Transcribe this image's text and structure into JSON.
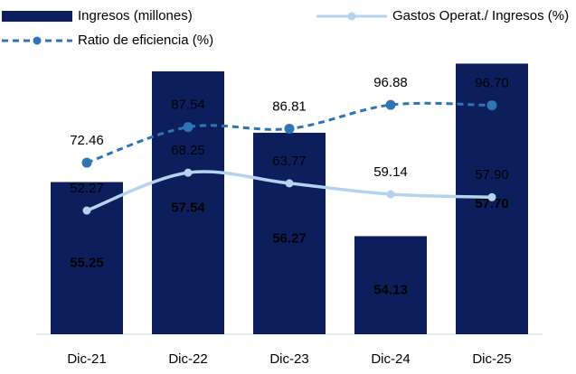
{
  "chart_data": {
    "type": "bar_line",
    "categories": [
      "Dic-21",
      "Dic-22",
      "Dic-23",
      "Dic-24",
      "Dic-25"
    ],
    "ylim": [
      52.1,
      58.4
    ],
    "y2lim": [
      0,
      128.6
    ],
    "series": [
      {
        "name": "Ingresos (millones)",
        "type": "bar",
        "color": "#0c1f5c",
        "values": [
          55.25,
          57.54,
          56.27,
          54.13,
          57.7
        ],
        "value_labels": [
          "55.25",
          "57.54",
          "56.27",
          "54.13",
          "57.70"
        ]
      },
      {
        "name": "Gastos Operat./ Ingresos (%)",
        "type": "line",
        "axis": "y2",
        "color": "#b4d3ef",
        "values": [
          52.27,
          68.25,
          63.77,
          59.14,
          57.9
        ],
        "value_labels": [
          "52.27",
          "68.25",
          "63.77",
          "59.14",
          "57.90"
        ]
      },
      {
        "name": "Ratio de eficiencia (%)",
        "type": "line",
        "axis": "y2",
        "dashed": true,
        "color": "#2e75b6",
        "values": [
          72.46,
          87.54,
          86.81,
          96.88,
          96.7
        ],
        "value_labels": [
          "72.46",
          "87.54",
          "86.81",
          "96.88",
          "96.70"
        ]
      }
    ],
    "legend": "top"
  }
}
